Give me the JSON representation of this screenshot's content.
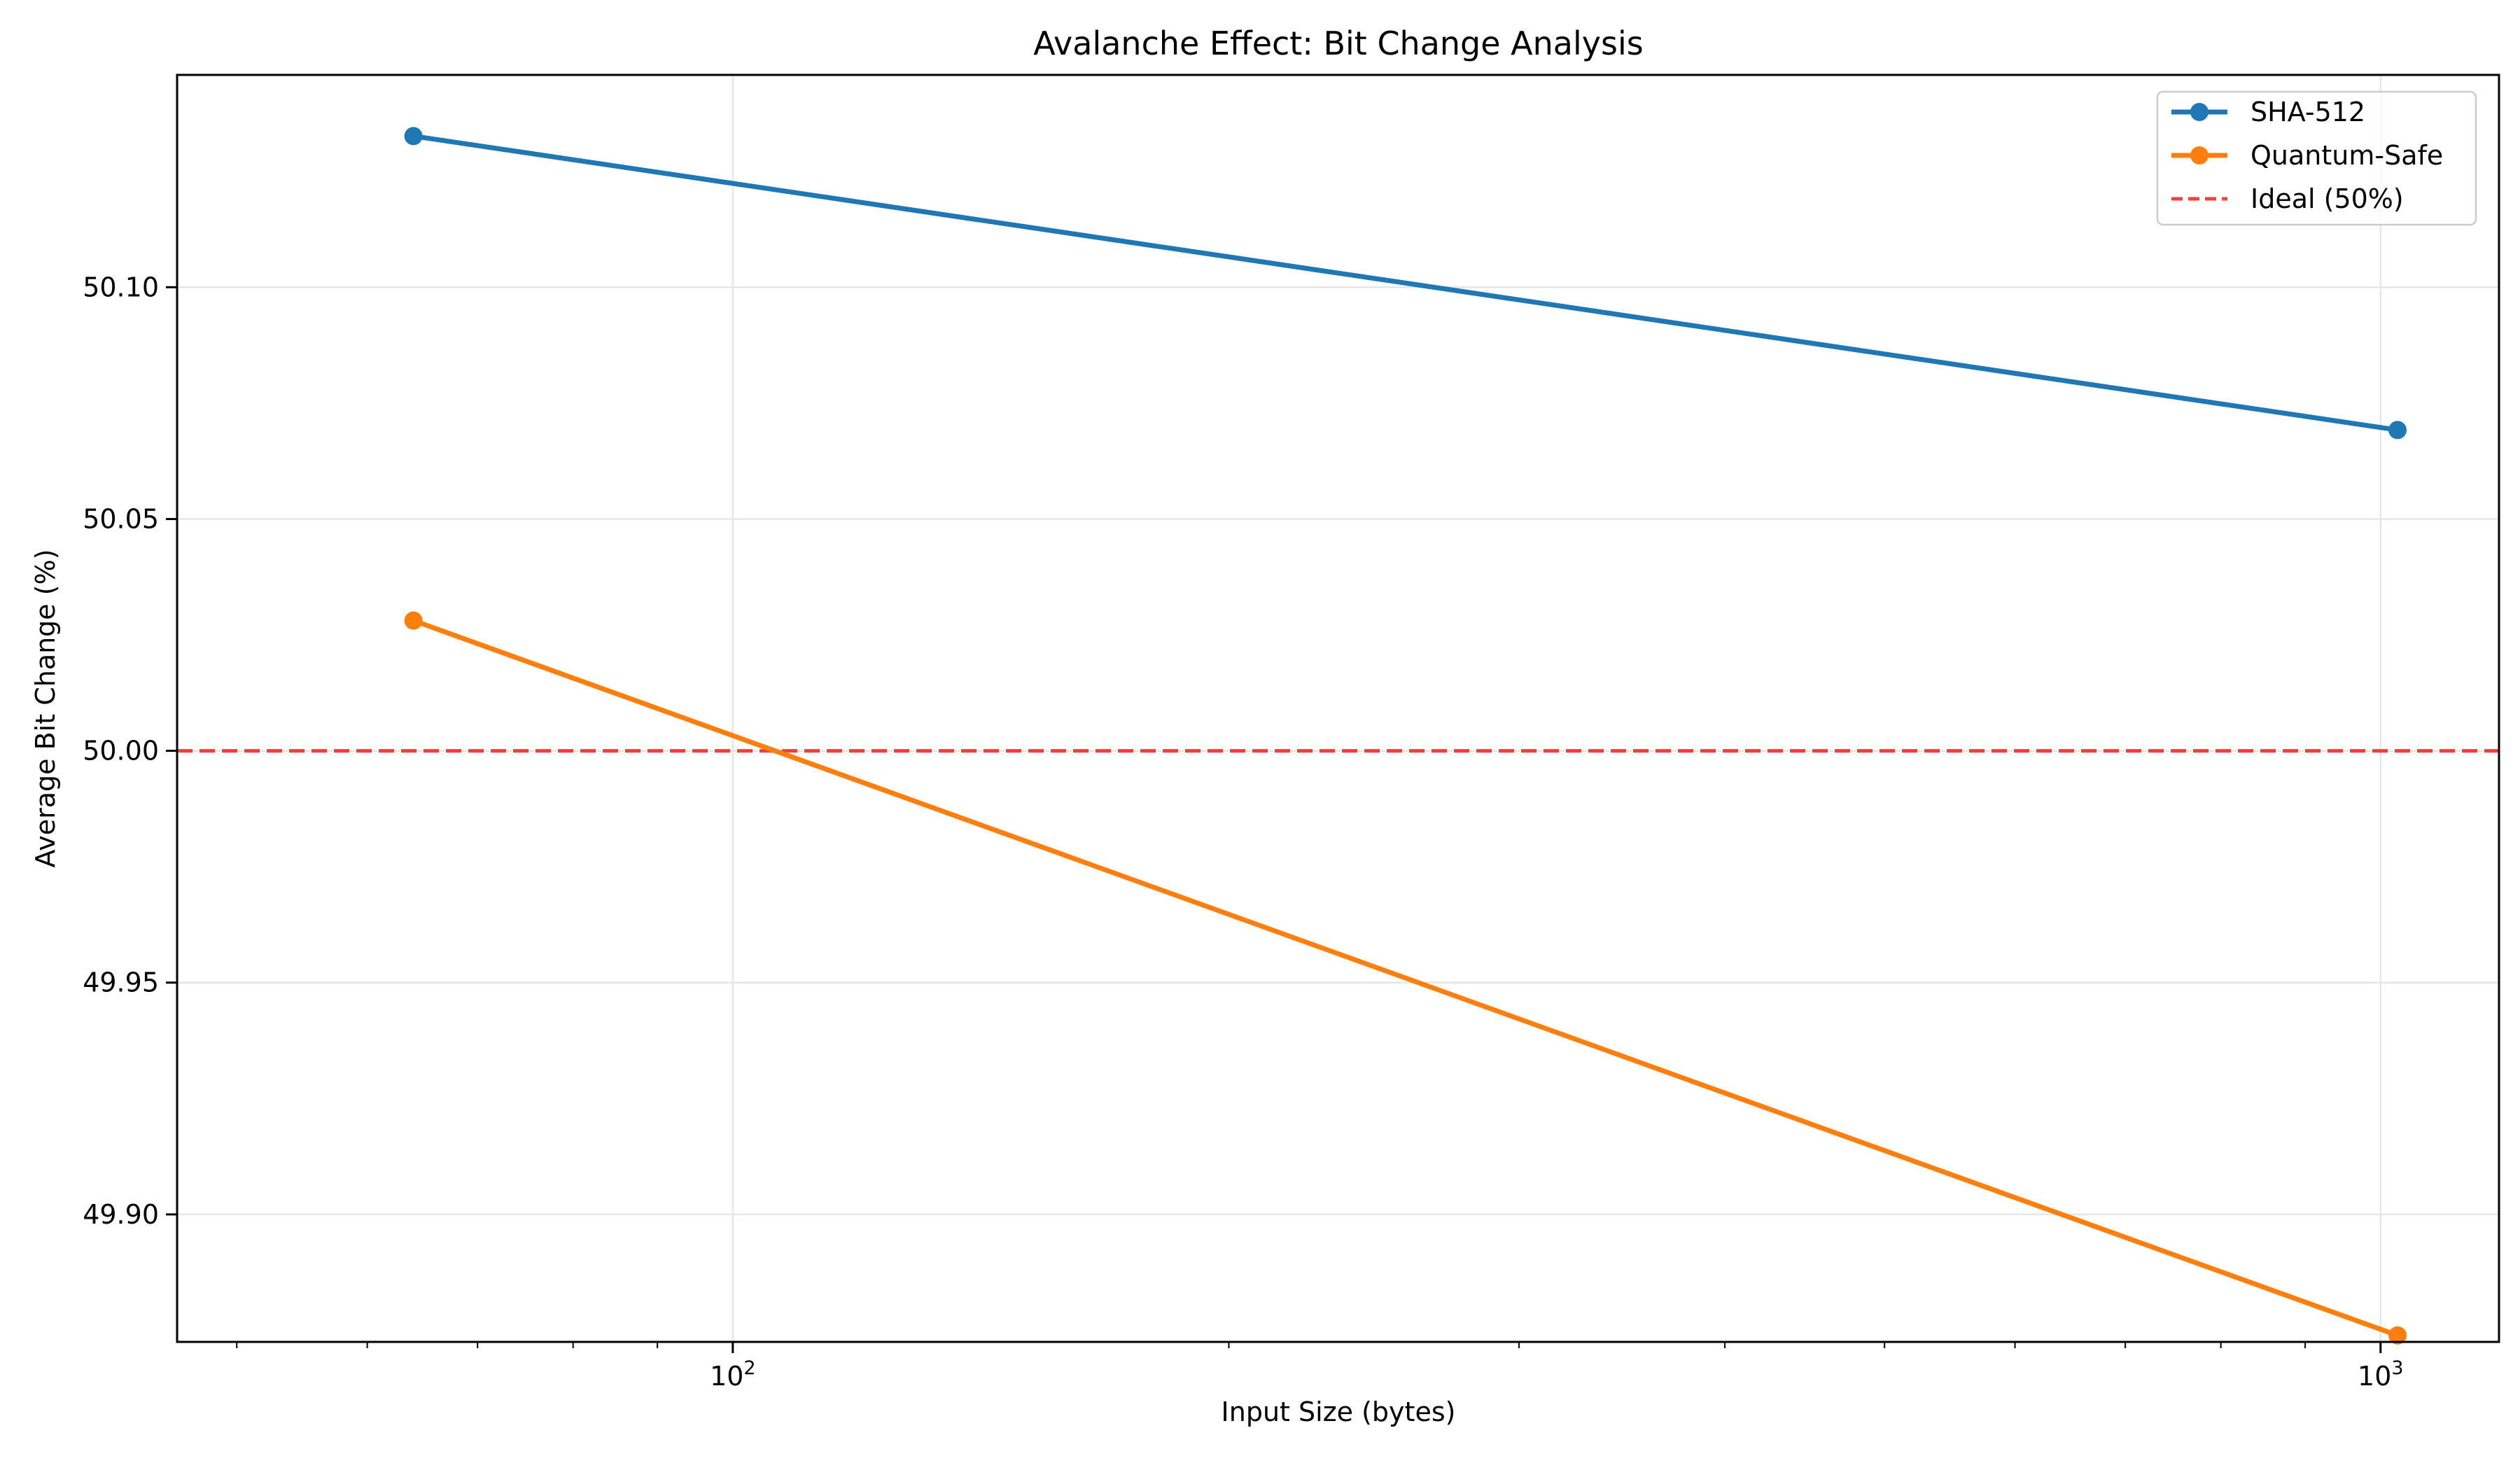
{
  "chart_data": {
    "type": "line",
    "title": "Avalanche Effect: Bit Change Analysis",
    "xlabel": "Input Size (bytes)",
    "ylabel": "Average Bit Change (%)",
    "xscale": "log",
    "xlim": [
      46,
      1180
    ],
    "ylim": [
      49.8725,
      50.1458
    ],
    "x": [
      64,
      1024
    ],
    "x_ticks": [
      {
        "value": 100,
        "label_base": "10",
        "label_exp": "2"
      },
      {
        "value": 1000,
        "label_base": "10",
        "label_exp": "3"
      }
    ],
    "y_ticks": [
      {
        "value": 49.9,
        "label": "49.90"
      },
      {
        "value": 49.95,
        "label": "49.95"
      },
      {
        "value": 50.0,
        "label": "50.00"
      },
      {
        "value": 50.05,
        "label": "50.05"
      },
      {
        "value": 50.1,
        "label": "50.10"
      }
    ],
    "series": [
      {
        "name": "SHA-512",
        "color": "#1f77b4",
        "values": [
          50.1326,
          50.0692
        ]
      },
      {
        "name": "Quantum-Safe",
        "color": "#ff7f0e",
        "values": [
          50.0281,
          49.8739
        ]
      }
    ],
    "reference_line": {
      "name": "Ideal (50%)",
      "value": 50.0,
      "color": "#ff0000",
      "style": "dashed"
    },
    "grid": true,
    "legend_position": "upper right"
  }
}
